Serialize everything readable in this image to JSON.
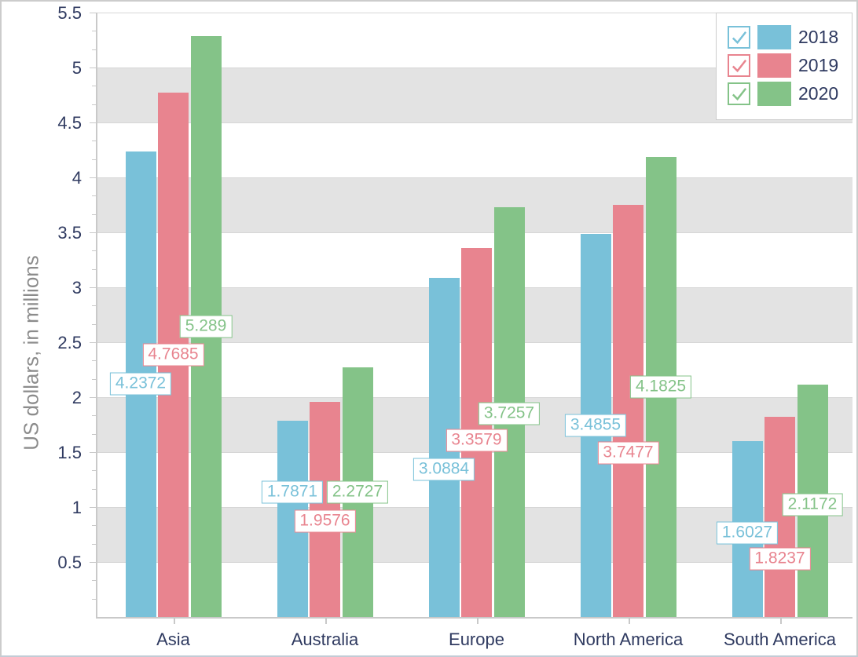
{
  "chart_data": {
    "type": "bar",
    "title": "",
    "ylabel": "US dollars, in millions",
    "xlabel": "",
    "categories": [
      "Asia",
      "Australia",
      "Europe",
      "North America",
      "South America"
    ],
    "series": [
      {
        "name": "2018",
        "color": "#79C1D9",
        "checked": true,
        "values": [
          4.2372,
          1.7871,
          3.0884,
          3.4855,
          1.6027
        ],
        "label_dy": [
          0,
          -34,
          28,
          0,
          5
        ]
      },
      {
        "name": "2019",
        "color": "#E8848F",
        "checked": true,
        "values": [
          4.7685,
          1.9576,
          3.3579,
          3.7477,
          1.8237
        ],
        "label_dy": [
          0,
          15,
          10,
          53,
          54
        ]
      },
      {
        "name": "2020",
        "color": "#84C388",
        "checked": true,
        "values": [
          5.289,
          2.2727,
          3.7257,
          4.1825,
          2.1172
        ],
        "label_dy": [
          0,
          0,
          2,
          0,
          5
        ]
      }
    ],
    "ylim": [
      0,
      5.5
    ],
    "y_tick_step": 0.5,
    "y_minor_ticks_per_interval": 2,
    "y_tick_labels": [
      "0.5",
      "1",
      "1.5",
      "2",
      "2.5",
      "3",
      "3.5",
      "4",
      "4.5",
      "5",
      "5.5"
    ],
    "grid": "horizontal-stripes",
    "legend_position": "top-right",
    "value_labels": "framed boxes centered on bars"
  },
  "colors": {
    "axis_text": "#2F3A60",
    "y_title_text": "#8C8C8C",
    "stripe_gray": "#E3E3E3",
    "gridline": "#D6D6D6",
    "axis_line": "#C9C9C9",
    "legend_border": "#CCCCCC",
    "label_box_bg": "#FFFFFF",
    "background": "#FFFFFF",
    "outer_border": "#CCCCCC"
  }
}
